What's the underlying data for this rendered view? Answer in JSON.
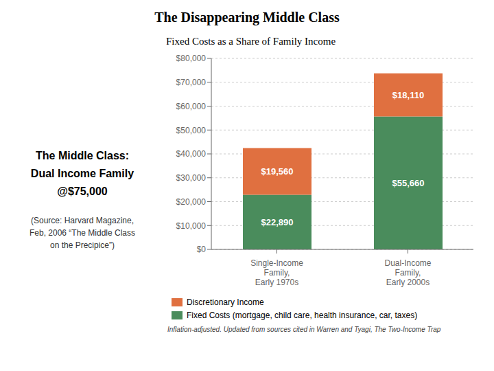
{
  "chart_data": {
    "type": "bar",
    "title": "The Disappearing Middle Class",
    "subtitle": "Fixed Costs as a Share of Family Income",
    "annotations": [
      "The Middle Class:",
      "Dual Income Family",
      "@$75,000",
      "(Source: Harvard Magazine,",
      "Feb, 2006  “The Middle Class",
      "on the Precipice”)",
      "Inflation-adjusted. Updated from sources cited in Warren and Tyagi, The Two-Income Trap"
    ],
    "categories": [
      "Single-Income\nFamily,\nEarly 1970s",
      "Dual-Income\nFamily,\nEarly 2000s"
    ],
    "series": [
      {
        "name": "Fixed Costs (mortgage, child care, health insurance, car, taxes)",
        "color": "#4a8c5c",
        "values": [
          22890,
          55660
        ],
        "value_labels": [
          "$22,890",
          "$55,660"
        ]
      },
      {
        "name": "Discretionary Income",
        "color": "#e07040",
        "values": [
          19560,
          18110
        ],
        "value_labels": [
          "$19,560",
          "$18,110"
        ]
      }
    ],
    "stacked": true,
    "data_labels": true,
    "grid": true,
    "ylim": [
      0,
      80000
    ],
    "yticks": [
      {
        "value": 0,
        "label": "$0"
      },
      {
        "value": 10000,
        "label": "$10,000"
      },
      {
        "value": 20000,
        "label": "$20,000"
      },
      {
        "value": 30000,
        "label": "$30,000"
      },
      {
        "value": 40000,
        "label": "$40,000"
      },
      {
        "value": 50000,
        "label": "$50,000"
      },
      {
        "value": 60000,
        "label": "$60,000"
      },
      {
        "value": 70000,
        "label": "$70,000"
      },
      {
        "value": 80000,
        "label": "$80,000"
      }
    ]
  }
}
